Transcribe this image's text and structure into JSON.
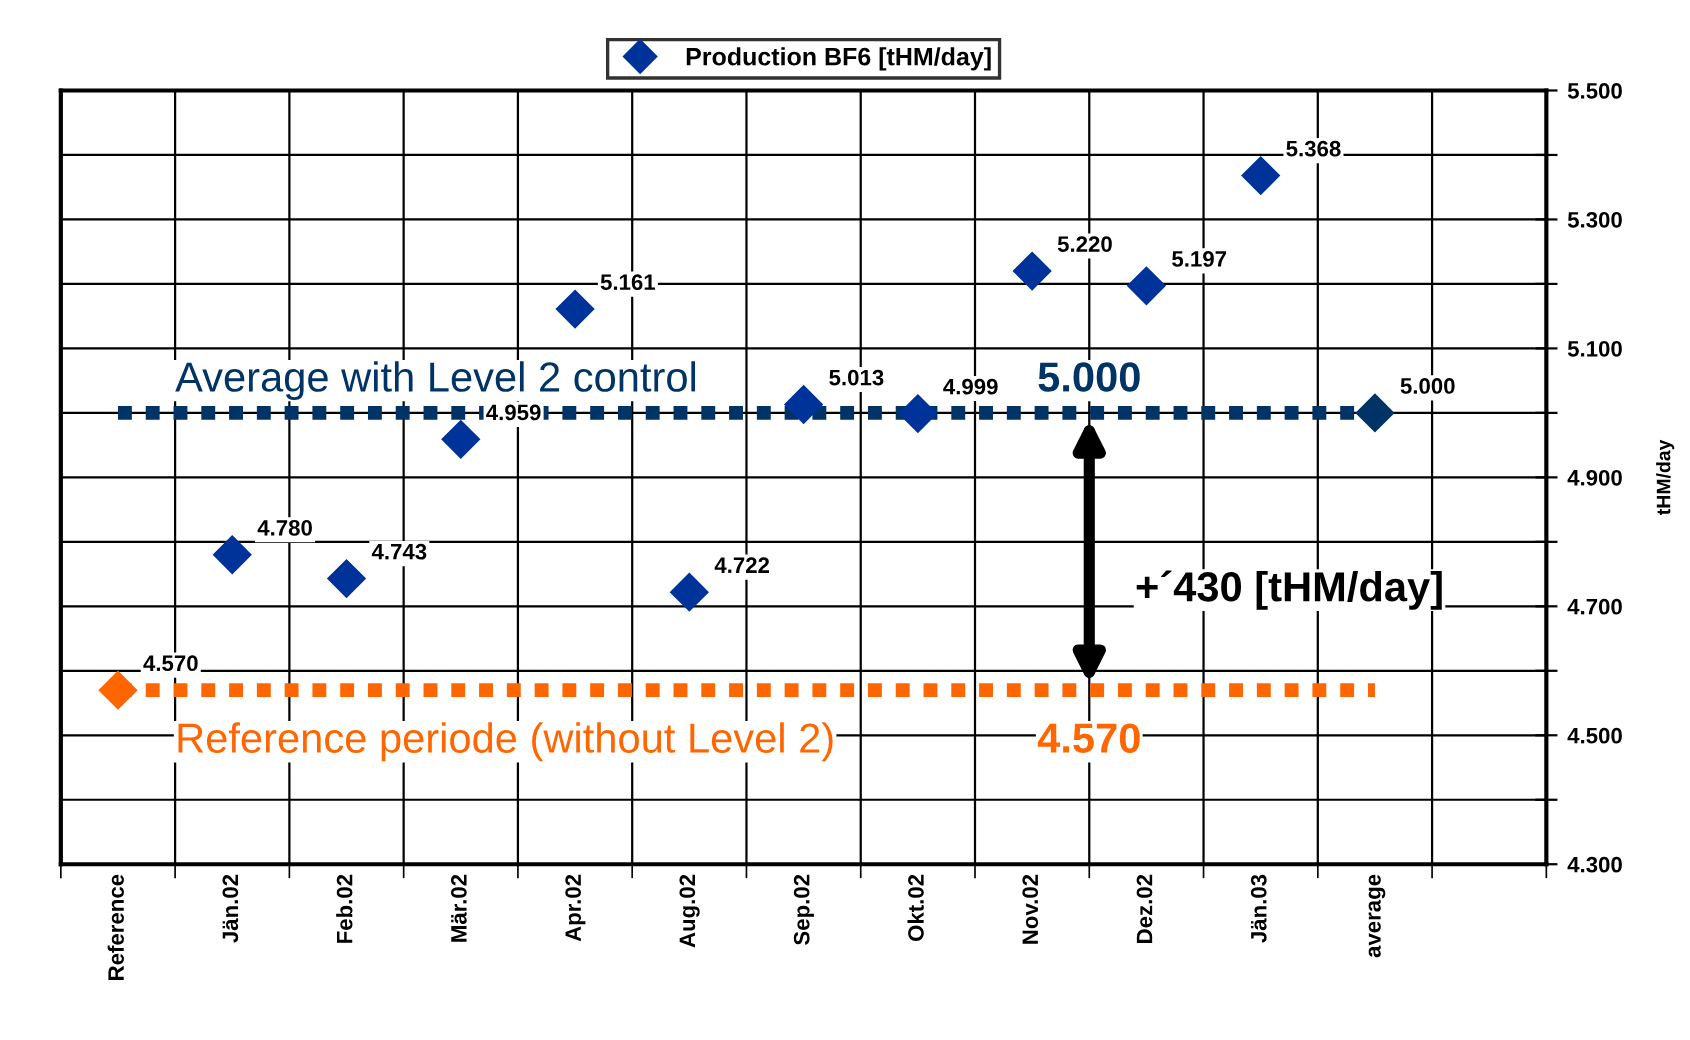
{
  "chart_data": {
    "type": "scatter",
    "categories": [
      "Reference",
      "Jän.02",
      "Feb.02",
      "Mär.02",
      "Apr.02",
      "Aug.02",
      "Sep.02",
      "Okt.02",
      "Nov.02",
      "Dez.02",
      "Jän.03",
      "average",
      null
    ],
    "series": [
      {
        "name": "Production BF6 [tHM/day]",
        "color": "#003399",
        "colors": [
          "#ff6600",
          "#003399",
          "#003399",
          "#003399",
          "#003399",
          "#003399",
          "#003399",
          "#003399",
          "#003399",
          "#003399",
          "#003399",
          "#003366",
          null
        ],
        "values": [
          4.57,
          4.78,
          4.743,
          4.959,
          5.161,
          4.722,
          5.013,
          4.999,
          5.22,
          5.197,
          5.368,
          5.0,
          null
        ],
        "value_labels": [
          "4.570",
          "4.780",
          "4.743",
          "4.959",
          "5.161",
          "4.722",
          "5.013",
          "4.999",
          "5.220",
          "5.197",
          "5.368",
          "5.000",
          null
        ]
      }
    ],
    "marker": "diamond",
    "y2label": "tHM/day",
    "ylim": [
      4.3,
      5.5
    ],
    "yticks": [
      {
        "value": 4.3,
        "label": "4.300"
      },
      {
        "value": 4.4,
        "label": null
      },
      {
        "value": 4.5,
        "label": "4.500"
      },
      {
        "value": 4.6,
        "label": null
      },
      {
        "value": 4.7,
        "label": "4.700"
      },
      {
        "value": 4.8,
        "label": null
      },
      {
        "value": 4.9,
        "label": "4.900"
      },
      {
        "value": 5.0,
        "label": null
      },
      {
        "value": 5.1,
        "label": "5.100"
      },
      {
        "value": 5.2,
        "label": null
      },
      {
        "value": 5.3,
        "label": "5.300"
      },
      {
        "value": 5.4,
        "label": null
      },
      {
        "value": 5.5,
        "label": "5.500"
      }
    ],
    "ref_lines": [
      {
        "axis": "y",
        "value": 5.0,
        "label": "Average with Level 2 control",
        "color": "#003366",
        "line_style": "dotted"
      },
      {
        "axis": "y",
        "value": 4.57,
        "label": "Reference periode (without Level 2)",
        "color": "#ff6600",
        "line_style": "dotted"
      }
    ],
    "annotations": [
      {
        "text": "5.000",
        "y": 5.0
      },
      {
        "text": "4.570",
        "y": 4.57
      },
      "+´430 [tHM/day]"
    ],
    "grid": true,
    "legend": "top"
  }
}
